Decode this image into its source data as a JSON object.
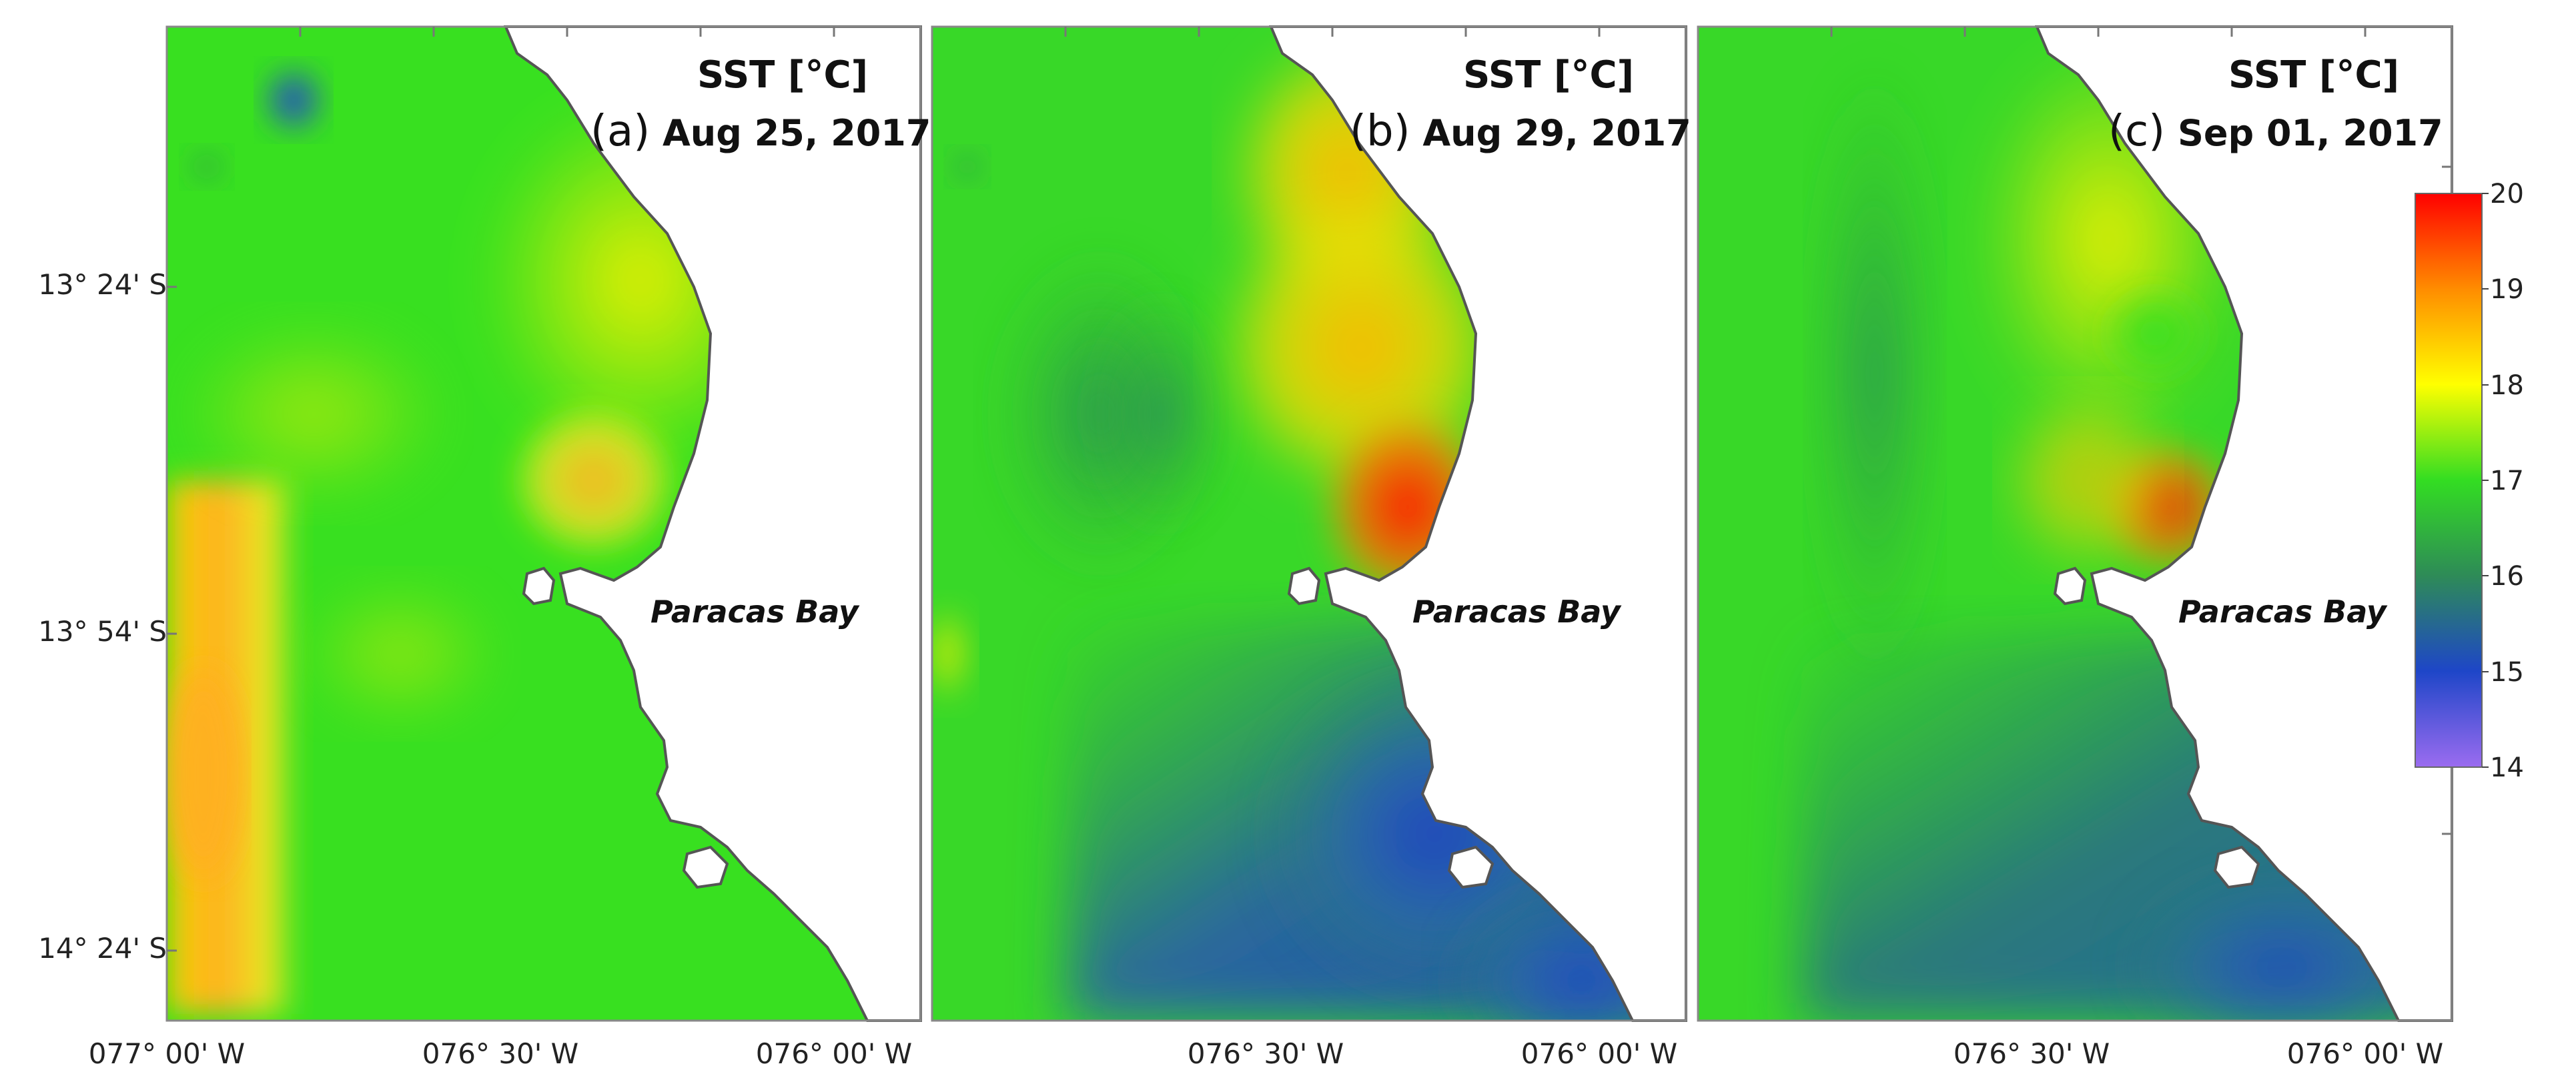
{
  "panels": [
    {
      "tag": "(a)",
      "date": "Aug 25, 2017",
      "title": "SST [°C]",
      "bay_label": "Paracas Bay"
    },
    {
      "tag": "(b)",
      "date": "Aug 29, 2017",
      "title": "SST [°C]",
      "bay_label": "Paracas Bay"
    },
    {
      "tag": "(c)",
      "date": "Sep 01, 2017",
      "title": "SST [°C]",
      "bay_label": "Paracas Bay"
    }
  ],
  "y_axis": {
    "ticks": [
      "13° 24' S",
      "13° 54' S",
      "14° 24' S"
    ]
  },
  "x_axis": {
    "panel_a": [
      "077° 00' W",
      "076° 30' W",
      "076° 00' W"
    ],
    "panel_b": [
      "076° 30' W",
      "076° 00' W"
    ],
    "panel_c": [
      "076° 30' W",
      "076° 00' W"
    ]
  },
  "colorbar": {
    "ticks": [
      "20",
      "19",
      "18",
      "17",
      "16",
      "15",
      "14"
    ],
    "colors": [
      "#ff0000",
      "#ff8c00",
      "#ffff00",
      "#33dd22",
      "#2e8b57",
      "#1e46c8",
      "#9b6cf0"
    ]
  }
}
